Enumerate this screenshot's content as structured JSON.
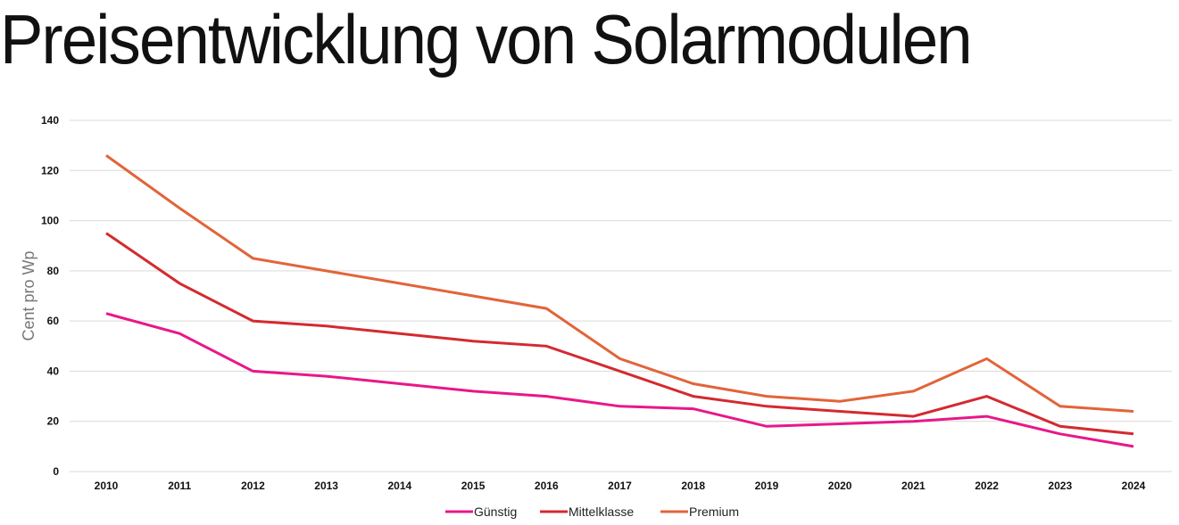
{
  "title": "Preisentwicklung von Solarmodulen",
  "chart_data": {
    "type": "line",
    "title": "Preisentwicklung von Solarmodulen",
    "xlabel": "",
    "ylabel": "Cent pro Wp",
    "x": [
      "2010",
      "2011",
      "2012",
      "2013",
      "2014",
      "2015",
      "2016",
      "2017",
      "2018",
      "2019",
      "2020",
      "2021",
      "2022",
      "2023",
      "2024"
    ],
    "ylim": [
      0,
      140
    ],
    "yticks": [
      0,
      20,
      40,
      60,
      80,
      100,
      120,
      140
    ],
    "grid": true,
    "legend_position": "bottom-center",
    "series": [
      {
        "name": "Günstig",
        "color": "#e8178a",
        "values": [
          63,
          55,
          40,
          38,
          35,
          32,
          30,
          26,
          25,
          18,
          19,
          20,
          22,
          15,
          10
        ]
      },
      {
        "name": "Mittelklasse",
        "color": "#d42a2f",
        "values": [
          95,
          75,
          60,
          58,
          55,
          52,
          50,
          40,
          30,
          26,
          24,
          22,
          30,
          18,
          15
        ]
      },
      {
        "name": "Premium",
        "color": "#e2643a",
        "values": [
          126,
          105,
          85,
          80,
          75,
          70,
          65,
          45,
          35,
          30,
          28,
          32,
          45,
          26,
          24
        ]
      }
    ]
  }
}
